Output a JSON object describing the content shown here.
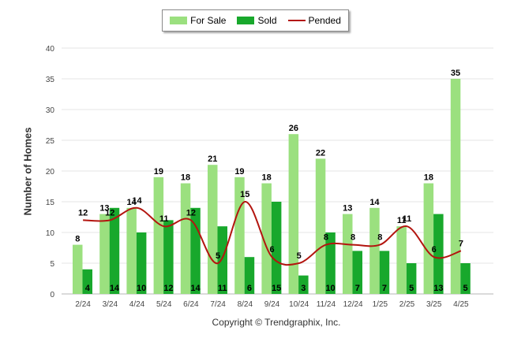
{
  "chart_data": {
    "type": "bar",
    "categories": [
      "2/24",
      "3/24",
      "4/24",
      "5/24",
      "6/24",
      "7/24",
      "8/24",
      "9/24",
      "10/24",
      "11/24",
      "12/24",
      "1/25",
      "2/25",
      "3/25",
      "4/25"
    ],
    "series": [
      {
        "name": "For Sale",
        "type": "bar",
        "color": "#9be07f",
        "values": [
          8,
          13,
          14,
          19,
          18,
          21,
          19,
          18,
          26,
          22,
          13,
          14,
          11,
          18,
          35
        ]
      },
      {
        "name": "Sold",
        "type": "bar",
        "color": "#18a82c",
        "values": [
          4,
          14,
          10,
          12,
          14,
          11,
          6,
          15,
          3,
          10,
          7,
          7,
          5,
          13,
          5
        ]
      },
      {
        "name": "Pended",
        "type": "line",
        "color": "#b3150f",
        "values": [
          12,
          12,
          14,
          11,
          12,
          5,
          15,
          6,
          5,
          8,
          8,
          8,
          11,
          6,
          7
        ]
      }
    ],
    "ylabel": "Number of Homes",
    "ylim": [
      0,
      40
    ],
    "yticks": [
      0,
      5,
      10,
      15,
      20,
      25,
      30,
      35,
      40
    ],
    "grid": true,
    "legend_position": "top-center"
  },
  "footer": {
    "copyright": "Copyright © Trendgraphix, Inc."
  }
}
